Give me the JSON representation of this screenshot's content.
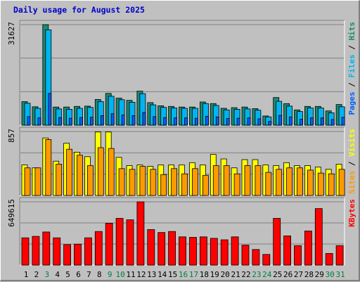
{
  "title": "Daily usage for August 2025",
  "colors": {
    "hits": "#1a8a72",
    "files": "#00b4f0",
    "pages": "#0060ff",
    "visits": "#ffff00",
    "sites": "#ff9900",
    "kbytes": "#ff0000",
    "weekend_day_label": "#008040",
    "weekday_day_label": "#000000",
    "panel": "#c0c0c0",
    "grid": "#808080"
  },
  "chart_data": [
    {
      "type": "bar",
      "name": "hits-files-pages",
      "title": "Daily usage for August 2025",
      "categories": [
        "1",
        "2",
        "3",
        "4",
        "5",
        "6",
        "7",
        "8",
        "9",
        "10",
        "11",
        "12",
        "13",
        "14",
        "15",
        "16",
        "17",
        "18",
        "19",
        "20",
        "21",
        "22",
        "23",
        "24",
        "25",
        "26",
        "27",
        "28",
        "29",
        "30",
        "31"
      ],
      "weekend_days": [
        "3",
        "9",
        "10",
        "16",
        "17",
        "23",
        "24",
        "30",
        "31"
      ],
      "ylabel_parts": [
        {
          "text": "Pages",
          "series": "pages"
        },
        {
          "text": " / ",
          "series": "sep"
        },
        {
          "text": "Files",
          "series": "files"
        },
        {
          "text": " / ",
          "series": "sep"
        },
        {
          "text": "Hits",
          "series": "hits"
        }
      ],
      "ymax_label": "31627",
      "ylim": [
        0,
        31627
      ],
      "series": [
        {
          "key": "hits",
          "values": [
            7400,
            5800,
            31627,
            5700,
            5700,
            5900,
            6000,
            8100,
            10000,
            8500,
            7800,
            10700,
            7100,
            6100,
            5900,
            5700,
            5700,
            7300,
            6800,
            5300,
            5500,
            5700,
            5200,
            2900,
            8700,
            6800,
            4800,
            5900,
            5900,
            4500,
            6500
          ]
        },
        {
          "key": "files",
          "values": [
            6900,
            5300,
            30000,
            5100,
            5000,
            5300,
            5600,
            7400,
            9100,
            8000,
            7200,
            9900,
            6400,
            5600,
            5400,
            5300,
            5300,
            6800,
            6200,
            4800,
            5000,
            5100,
            4700,
            2600,
            7500,
            6000,
            4300,
            5400,
            5400,
            3900,
            5800
          ]
        },
        {
          "key": "pages",
          "values": [
            2700,
            2300,
            10000,
            2400,
            2200,
            2400,
            2500,
            3000,
            3600,
            3200,
            3000,
            4000,
            2700,
            2400,
            2300,
            2300,
            2200,
            2800,
            2600,
            2100,
            2200,
            2300,
            2000,
            1200,
            3100,
            2600,
            1900,
            2300,
            2300,
            1800,
            2500
          ]
        }
      ]
    },
    {
      "type": "bar",
      "name": "visits-sites",
      "categories": [
        "1",
        "2",
        "3",
        "4",
        "5",
        "6",
        "7",
        "8",
        "9",
        "10",
        "11",
        "12",
        "13",
        "14",
        "15",
        "16",
        "17",
        "18",
        "19",
        "20",
        "21",
        "22",
        "23",
        "24",
        "25",
        "26",
        "27",
        "28",
        "29",
        "30",
        "31"
      ],
      "ylabel_parts": [
        {
          "text": "Sites",
          "series": "sites"
        },
        {
          "text": " / ",
          "series": "sep"
        },
        {
          "text": "Visits",
          "series": "visits"
        }
      ],
      "ymax_label": "857",
      "ylim": [
        0,
        857
      ],
      "series": [
        {
          "key": "visits",
          "values": [
            410,
            370,
            770,
            460,
            700,
            580,
            520,
            850,
            850,
            510,
            400,
            410,
            390,
            410,
            410,
            410,
            440,
            410,
            550,
            490,
            370,
            480,
            480,
            410,
            400,
            440,
            400,
            400,
            380,
            350,
            420
          ]
        },
        {
          "key": "sites",
          "values": [
            370,
            370,
            750,
            420,
            620,
            540,
            400,
            640,
            630,
            360,
            350,
            390,
            350,
            280,
            360,
            290,
            360,
            270,
            400,
            400,
            290,
            400,
            400,
            310,
            350,
            370,
            370,
            340,
            300,
            290,
            350
          ]
        }
      ]
    },
    {
      "type": "bar",
      "name": "kbytes",
      "categories": [
        "1",
        "2",
        "3",
        "4",
        "5",
        "6",
        "7",
        "8",
        "9",
        "10",
        "11",
        "12",
        "13",
        "14",
        "15",
        "16",
        "17",
        "18",
        "19",
        "20",
        "21",
        "22",
        "23",
        "24",
        "25",
        "26",
        "27",
        "28",
        "29",
        "30",
        "31"
      ],
      "ylabel_parts": [
        {
          "text": "KBytes",
          "series": "kbytes"
        }
      ],
      "ymax_label": "649615",
      "ylim": [
        0,
        649615
      ],
      "series": [
        {
          "key": "kbytes",
          "values": [
            280000,
            295000,
            340000,
            280000,
            210000,
            215000,
            280000,
            345000,
            430000,
            480000,
            465000,
            649615,
            365000,
            335000,
            345000,
            290000,
            285000,
            290000,
            275000,
            260000,
            290000,
            205000,
            160000,
            110000,
            480000,
            300000,
            200000,
            350000,
            580000,
            120000,
            200000
          ]
        }
      ]
    }
  ]
}
